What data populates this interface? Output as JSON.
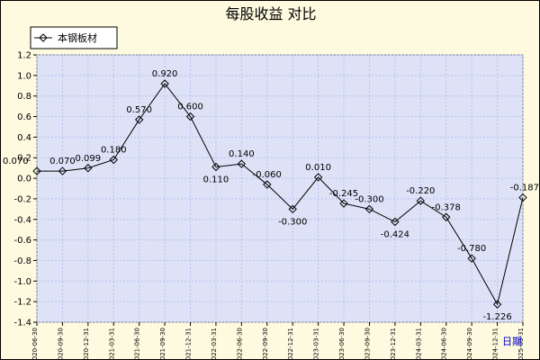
{
  "chart_data": {
    "type": "line",
    "title": "每股收益  对比",
    "xlabel": "日期",
    "ylabel": "",
    "ylim": [
      -1.4,
      1.2
    ],
    "ytick_step": 0.2,
    "grid": true,
    "legend": {
      "position": "top-left"
    },
    "categories": [
      "2020-06-30",
      "2020-09-30",
      "2020-12-31",
      "2021-03-31",
      "2021-06-30",
      "2021-09-30",
      "2021-12-31",
      "2022-03-31",
      "2022-06-30",
      "2022-09-30",
      "2022-12-31",
      "2023-03-31",
      "2023-06-30",
      "2023-09-30",
      "2023-12-31",
      "2024-03-31",
      "2024-06-30",
      "2024-09-30",
      "2024-12-31",
      "2025-03-31"
    ],
    "series": [
      {
        "name": "本钢板材",
        "values": [
          0.07,
          0.07,
          0.099,
          0.18,
          0.57,
          0.92,
          0.6,
          0.11,
          0.14,
          -0.06,
          -0.3,
          0.01,
          -0.245,
          -0.3,
          -0.424,
          -0.22,
          -0.378,
          -0.78,
          -1.226,
          -0.187
        ],
        "labels": [
          "0.070",
          "0.070",
          "0.099",
          "0.180",
          "0.570",
          "0.920",
          "0.600",
          "0.110",
          "0.140",
          "-0.060",
          "-0.300",
          "0.010",
          "-0.245",
          "-0.300",
          "-0.424",
          "-0.220",
          "-0.378",
          "-0.780",
          "-1.226",
          "-0.187"
        ]
      }
    ],
    "colors": {
      "background": "#fdfae0",
      "plot_background": "#dde2f7",
      "grid": "#b8c3ee",
      "line": "#000000",
      "marker": "#000000"
    }
  }
}
